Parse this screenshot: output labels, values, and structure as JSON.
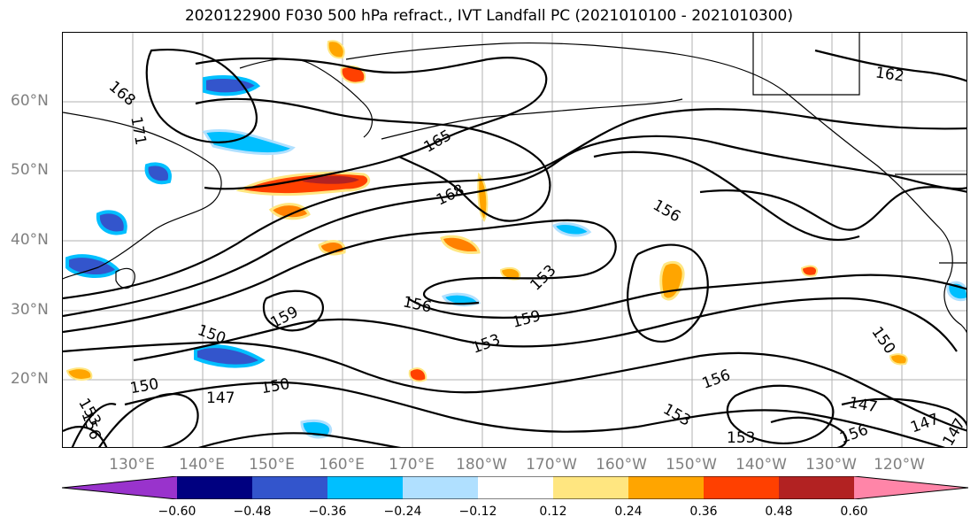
{
  "title": "2020122900 F030 500 hPa refract., IVT Landfall PC (2021010100 - 2021010300)",
  "map": {
    "lat_labels": [
      "60°N",
      "50°N",
      "40°N",
      "30°N",
      "20°N"
    ],
    "lon_labels": [
      "130°E",
      "140°E",
      "150°E",
      "160°E",
      "170°E",
      "180°W",
      "170°W",
      "160°W",
      "150°W",
      "140°W",
      "130°W",
      "120°W"
    ],
    "contour_labels": [
      "168",
      "171",
      "165",
      "168",
      "162",
      "156",
      "159",
      "156",
      "153",
      "159",
      "153",
      "150",
      "150",
      "147",
      "150",
      "150",
      "156",
      "153",
      "153",
      "147",
      "147",
      "147",
      "156",
      "153",
      "156"
    ],
    "gridlines": true,
    "contour_color": "#000000"
  },
  "colorbar": {
    "colors": [
      "#9933cc",
      "#000080",
      "#3355cc",
      "#00bfff",
      "#b0e0ff",
      "#ffffff",
      "#ffe680",
      "#ffa500",
      "#ff4000",
      "#b22222",
      "#ff85a8"
    ],
    "ticks": [
      "−0.60",
      "−0.48",
      "−0.36",
      "−0.24",
      "−0.12",
      "0.12",
      "0.24",
      "0.36",
      "0.48",
      "0.60"
    ]
  }
}
